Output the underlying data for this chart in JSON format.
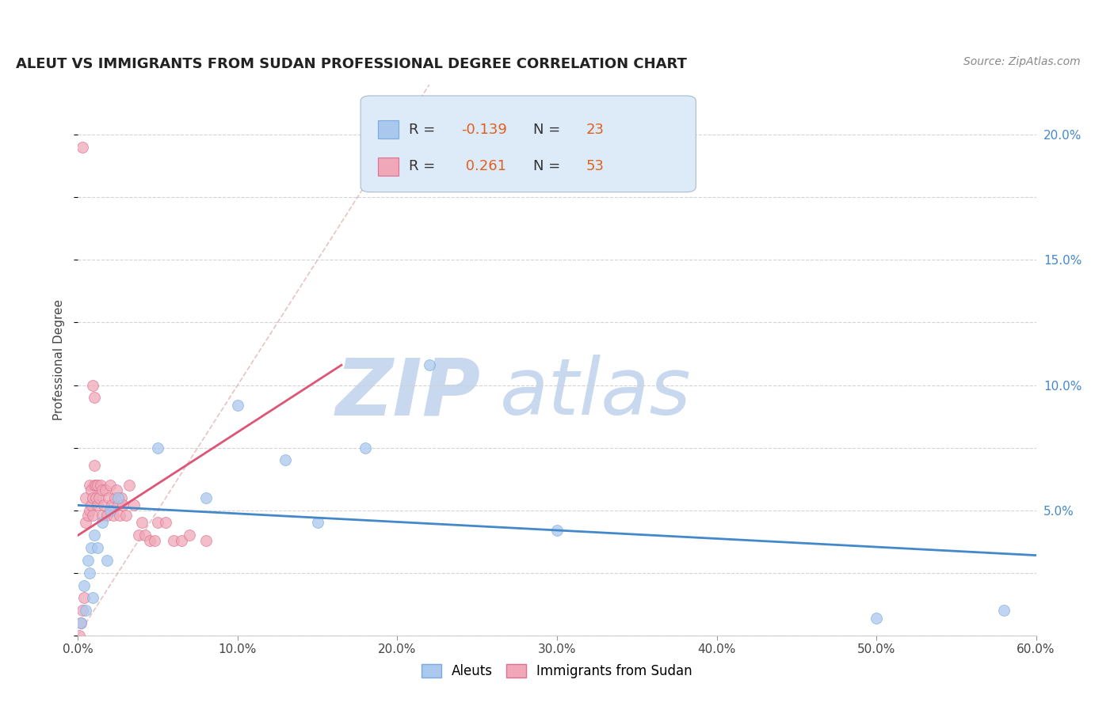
{
  "title": "ALEUT VS IMMIGRANTS FROM SUDAN PROFESSIONAL DEGREE CORRELATION CHART",
  "source_text": "Source: ZipAtlas.com",
  "ylabel": "Professional Degree",
  "xlim": [
    0.0,
    0.6
  ],
  "ylim": [
    0.0,
    0.22
  ],
  "xticks": [
    0.0,
    0.1,
    0.2,
    0.3,
    0.4,
    0.5,
    0.6
  ],
  "xticklabels": [
    "0.0%",
    "10.0%",
    "20.0%",
    "30.0%",
    "40.0%",
    "50.0%",
    "60.0%"
  ],
  "yticks_right": [
    0.05,
    0.1,
    0.15,
    0.2
  ],
  "yticklabels_right": [
    "5.0%",
    "10.0%",
    "15.0%",
    "20.0%"
  ],
  "grid_color": "#d0d0d0",
  "background_color": "#ffffff",
  "watermark_zip": "ZIP",
  "watermark_atlas": "atlas",
  "watermark_color_zip": "#c8d8ee",
  "watermark_color_atlas": "#c8d8ee",
  "aleuts_color": "#aac8ee",
  "aleuts_edge_color": "#7aabdd",
  "sudan_color": "#f0a8b8",
  "sudan_edge_color": "#dd7090",
  "aleuts_R": -0.139,
  "aleuts_N": 23,
  "sudan_R": 0.261,
  "sudan_N": 53,
  "legend_box_color": "#ddeaf8",
  "legend_box_edge": "#aabbcc",
  "aleuts_trend_color": "#4488cc",
  "sudan_trend_color": "#dd5577",
  "ref_line_color": "#ddaaaa",
  "aleuts_points_x": [
    0.002,
    0.004,
    0.005,
    0.006,
    0.007,
    0.008,
    0.009,
    0.01,
    0.012,
    0.015,
    0.018,
    0.02,
    0.025,
    0.05,
    0.08,
    0.1,
    0.13,
    0.15,
    0.18,
    0.22,
    0.3,
    0.5,
    0.58
  ],
  "aleuts_points_y": [
    0.005,
    0.02,
    0.01,
    0.03,
    0.025,
    0.035,
    0.015,
    0.04,
    0.035,
    0.045,
    0.03,
    0.05,
    0.055,
    0.075,
    0.055,
    0.092,
    0.07,
    0.045,
    0.075,
    0.108,
    0.042,
    0.007,
    0.01
  ],
  "sudan_points_x": [
    0.001,
    0.002,
    0.003,
    0.004,
    0.005,
    0.005,
    0.006,
    0.007,
    0.007,
    0.008,
    0.008,
    0.009,
    0.009,
    0.01,
    0.01,
    0.011,
    0.011,
    0.012,
    0.012,
    0.013,
    0.014,
    0.015,
    0.015,
    0.016,
    0.017,
    0.018,
    0.019,
    0.02,
    0.021,
    0.022,
    0.023,
    0.024,
    0.025,
    0.026,
    0.027,
    0.028,
    0.03,
    0.032,
    0.035,
    0.038,
    0.04,
    0.042,
    0.045,
    0.048,
    0.05,
    0.055,
    0.06,
    0.065,
    0.07,
    0.08,
    0.009,
    0.01,
    0.003
  ],
  "sudan_points_y": [
    0.0,
    0.005,
    0.01,
    0.015,
    0.045,
    0.055,
    0.048,
    0.05,
    0.06,
    0.052,
    0.058,
    0.048,
    0.055,
    0.06,
    0.068,
    0.055,
    0.06,
    0.052,
    0.06,
    0.055,
    0.06,
    0.048,
    0.058,
    0.052,
    0.058,
    0.048,
    0.055,
    0.06,
    0.052,
    0.048,
    0.055,
    0.058,
    0.052,
    0.048,
    0.055,
    0.052,
    0.048,
    0.06,
    0.052,
    0.04,
    0.045,
    0.04,
    0.038,
    0.038,
    0.045,
    0.045,
    0.038,
    0.038,
    0.04,
    0.038,
    0.1,
    0.095,
    0.195
  ],
  "sudan_trend_x0": 0.0,
  "sudan_trend_x1": 0.165,
  "sudan_trend_y0": 0.04,
  "sudan_trend_y1": 0.108,
  "aleuts_trend_x0": 0.0,
  "aleuts_trend_x1": 0.6,
  "aleuts_trend_y0": 0.052,
  "aleuts_trend_y1": 0.032
}
